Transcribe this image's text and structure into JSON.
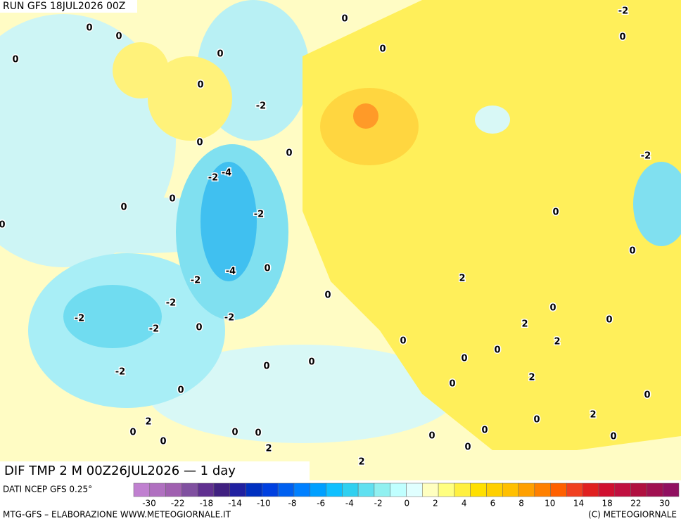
{
  "header": {
    "run": "RUN GFS 18JUL2026 00Z"
  },
  "map": {
    "title": "DIF TMP 2 M 00Z26JUL2026 — 1 day",
    "contour_labels": [
      0,
      0,
      0,
      0,
      0,
      0,
      0,
      -2,
      0,
      -2,
      0,
      0,
      -4,
      -2,
      0,
      0,
      0,
      -2,
      -2,
      0,
      0,
      0,
      -4,
      -2,
      2,
      0,
      -2,
      -2,
      0,
      0,
      -2,
      -2,
      0,
      2,
      0,
      0,
      2,
      0,
      0,
      0,
      -2,
      2,
      0,
      0,
      0,
      2,
      0,
      2,
      0,
      0,
      0,
      0,
      0,
      0,
      2,
      0,
      0,
      2
    ]
  },
  "legend": {
    "source": "DATI NCEP GFS 0.25°",
    "colors": [
      "#c080d0",
      "#b070c0",
      "#a060b0",
      "#8050a0",
      "#603090",
      "#402080",
      "#2020a0",
      "#0030c0",
      "#0040e0",
      "#0060f0",
      "#0080ff",
      "#00a0ff",
      "#10c0ff",
      "#30d0f0",
      "#60e0f0",
      "#90f0f0",
      "#c0ffff",
      "#e0ffff",
      "#ffffc0",
      "#ffff80",
      "#fff040",
      "#ffe000",
      "#ffd000",
      "#ffc000",
      "#ffa000",
      "#ff8000",
      "#ff6000",
      "#f04020",
      "#e02020",
      "#d01030",
      "#c01040",
      "#b01040",
      "#a01050",
      "#901060"
    ],
    "ticks": [
      -30,
      -22,
      -18,
      -14,
      -10,
      -8,
      -6,
      -4,
      -2,
      0,
      2,
      4,
      6,
      8,
      10,
      14,
      18,
      22,
      30
    ]
  },
  "footer": {
    "left": "MTG-GFS – ELABORAZIONE WWW.METEOGIORNALE.IT",
    "right": "(C) METEOGIORNALE"
  }
}
